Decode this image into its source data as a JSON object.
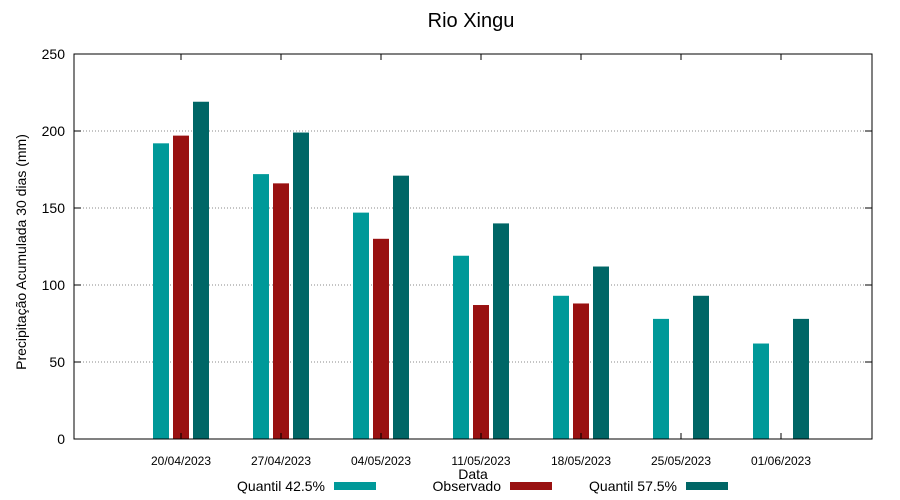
{
  "chart_data": {
    "type": "bar",
    "title": "Rio Xingu",
    "xlabel": "Data",
    "ylabel": "Precipitação Acumulada 30 dias (mm)",
    "ylim": [
      0,
      250
    ],
    "yticks": [
      0,
      50,
      100,
      150,
      200,
      250
    ],
    "grid": "horizontal-dotted",
    "legend": "bottom",
    "categories": [
      "20/04/2023",
      "27/04/2023",
      "04/05/2023",
      "11/05/2023",
      "18/05/2023",
      "25/05/2023",
      "01/06/2023"
    ],
    "series": [
      {
        "name": "Quantil 42.5%",
        "color": "#009999",
        "values": [
          192,
          172,
          147,
          119,
          93,
          78,
          62
        ]
      },
      {
        "name": "Observado",
        "color": "#991111",
        "values": [
          197,
          166,
          130,
          87,
          88,
          null,
          null
        ]
      },
      {
        "name": "Quantil 57.5%",
        "color": "#006666",
        "values": [
          219,
          199,
          171,
          140,
          112,
          93,
          78
        ]
      }
    ]
  }
}
